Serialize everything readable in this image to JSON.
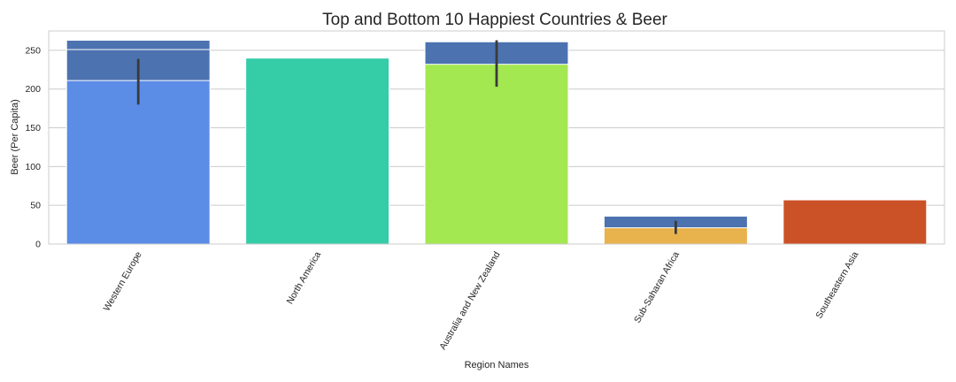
{
  "chart_data": {
    "type": "bar",
    "title": "Top and Bottom 10 Happiest Countries & Beer",
    "xlabel": "Region Names",
    "ylabel": "Beer (Per Capita)",
    "ylim": [
      0,
      275
    ],
    "yticks": [
      0,
      50,
      100,
      150,
      200,
      250
    ],
    "grid": true,
    "categories": [
      "Western Europe",
      "North America",
      "Australia and New Zealand",
      "Sub-Saharan Africa",
      "Southeastern Asia"
    ],
    "series": [
      {
        "values": [
          263,
          null,
          261,
          36,
          null
        ],
        "color": "#4c72b0",
        "error_low": [
          null,
          null,
          null,
          null,
          null
        ],
        "error_high": [
          null,
          null,
          null,
          null,
          null
        ]
      },
      {
        "values": [
          251,
          null,
          null,
          null,
          null
        ],
        "color": "#4c72b0",
        "error_low": [
          null,
          null,
          null,
          null,
          null
        ],
        "error_high": [
          null,
          null,
          null,
          null,
          null
        ]
      },
      {
        "values": [
          211,
          240,
          232,
          21,
          57
        ],
        "colors": [
          "#5b8ce6",
          "#35cca8",
          "#a3e751",
          "#e8b24c",
          "#cb5126"
        ],
        "error_low": [
          180,
          null,
          203,
          13,
          null
        ],
        "error_high": [
          239,
          null,
          263,
          30,
          null
        ]
      }
    ]
  }
}
